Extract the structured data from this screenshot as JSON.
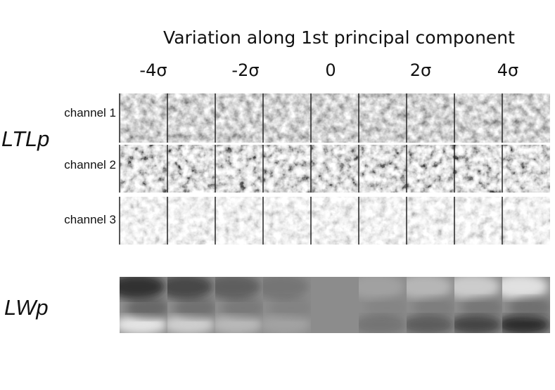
{
  "header": {
    "title": "Variation along 1st principal component",
    "columns": [
      "-4σ",
      "-2σ",
      "0",
      "2σ",
      "4σ"
    ]
  },
  "groups": [
    {
      "label": "LTLp",
      "rows": [
        "channel 1",
        "channel 2",
        "channel 3"
      ]
    },
    {
      "label": "LWp"
    }
  ]
}
